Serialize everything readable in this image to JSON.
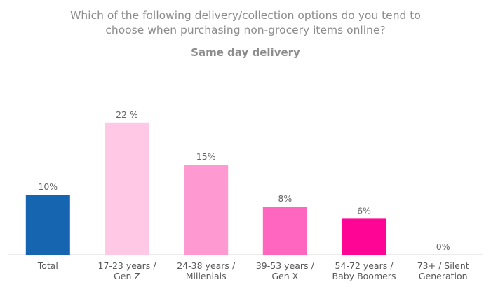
{
  "chart_data": {
    "type": "bar",
    "title": "Which of the following delivery/collection options do you tend to choose when purchasing non-grocery items online?",
    "title_lines": [
      "Which of the following delivery/collection options do you tend to",
      "choose when purchasing non-grocery items online?"
    ],
    "subtitle": "Same day delivery",
    "categories": [
      [
        "Total"
      ],
      [
        "17-23 years /",
        "Gen Z"
      ],
      [
        "24-38 years /",
        "Millenials"
      ],
      [
        "39-53 years /",
        "Gen X"
      ],
      [
        "54-72 years /",
        "Baby Boomers"
      ],
      [
        "73+ / Silent",
        "Generation"
      ]
    ],
    "values": [
      10,
      22,
      15,
      8,
      6,
      0
    ],
    "value_labels": [
      "10%",
      "22 %",
      "15%",
      "8%",
      "6%",
      "0%"
    ],
    "colors": [
      "#1565b0",
      "#ffc9e6",
      "#ff99d2",
      "#ff66bf",
      "#ff0596",
      "#ff0596"
    ],
    "ylim": [
      0,
      25
    ],
    "grid": false,
    "legend": "none",
    "xlabel": "",
    "ylabel": ""
  }
}
